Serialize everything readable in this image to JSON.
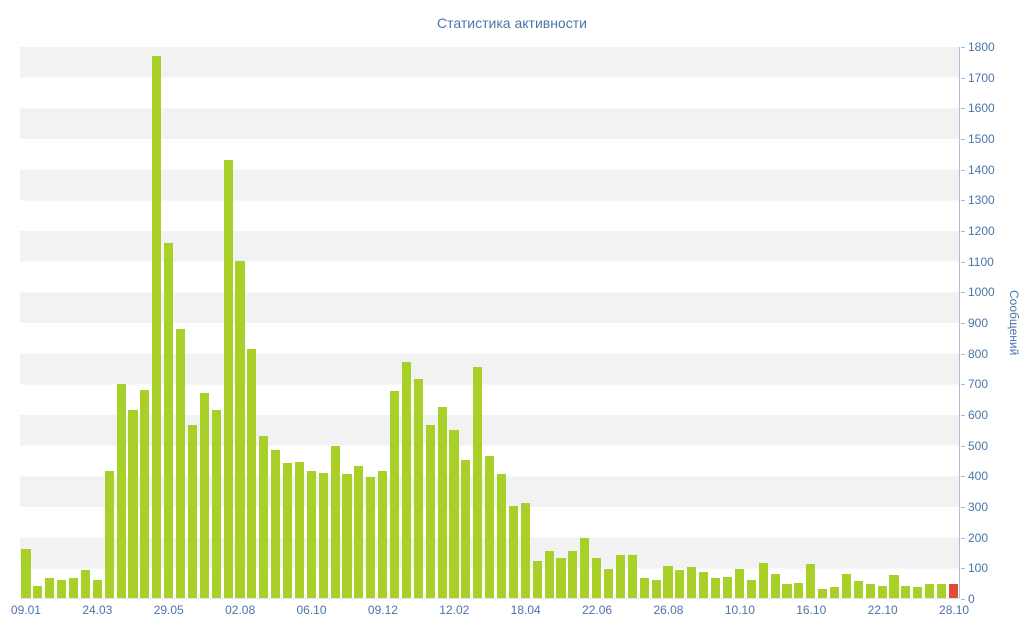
{
  "title": "Статистика активности",
  "colors": {
    "bar": "#a9d028",
    "current_bar": "#e14b38",
    "text": "#4a76a8",
    "stripe": "#f2f2f2",
    "axis_line": "#a9c0d6"
  },
  "chart_data": {
    "type": "bar",
    "title": "Статистика активности",
    "xlabel": "",
    "ylabel": "Сообщений",
    "ylim": [
      0,
      1800
    ],
    "y_tick_interval": 100,
    "y_tick_labels": [
      "0",
      "100",
      "200",
      "300",
      "400",
      "500",
      "600",
      "700",
      "800",
      "900",
      "1000",
      "1100",
      "1200",
      "1300",
      "1400",
      "1500",
      "1600",
      "1700",
      "1800"
    ],
    "grid": "striped-horizontal-bands",
    "legend": "none",
    "x_tick_labels": [
      {
        "index": 0,
        "label": "09.01"
      },
      {
        "index": 6,
        "label": "24.03"
      },
      {
        "index": 12,
        "label": "29.05"
      },
      {
        "index": 18,
        "label": "02.08"
      },
      {
        "index": 24,
        "label": "06.10"
      },
      {
        "index": 30,
        "label": "09.12"
      },
      {
        "index": 36,
        "label": "12.02"
      },
      {
        "index": 42,
        "label": "18.04"
      },
      {
        "index": 48,
        "label": "22.06"
      },
      {
        "index": 54,
        "label": "26.08"
      },
      {
        "index": 60,
        "label": "10.10"
      },
      {
        "index": 66,
        "label": "16.10"
      },
      {
        "index": 72,
        "label": "22.10"
      },
      {
        "index": 78,
        "label": "28.10"
      }
    ],
    "values": [
      160,
      40,
      65,
      60,
      65,
      90,
      60,
      415,
      700,
      615,
      680,
      1770,
      1160,
      880,
      565,
      670,
      615,
      1430,
      1100,
      815,
      530,
      485,
      440,
      445,
      415,
      410,
      495,
      405,
      430,
      395,
      415,
      675,
      770,
      715,
      565,
      625,
      550,
      450,
      755,
      465,
      405,
      300,
      310,
      120,
      155,
      130,
      155,
      195,
      130,
      95,
      140,
      140,
      65,
      60,
      105,
      90,
      100,
      85,
      65,
      70,
      95,
      60,
      115,
      80,
      45,
      50,
      110,
      30,
      35,
      80,
      55,
      45,
      40,
      75,
      40,
      35,
      45,
      45,
      45
    ],
    "last_bar_highlighted": true
  }
}
